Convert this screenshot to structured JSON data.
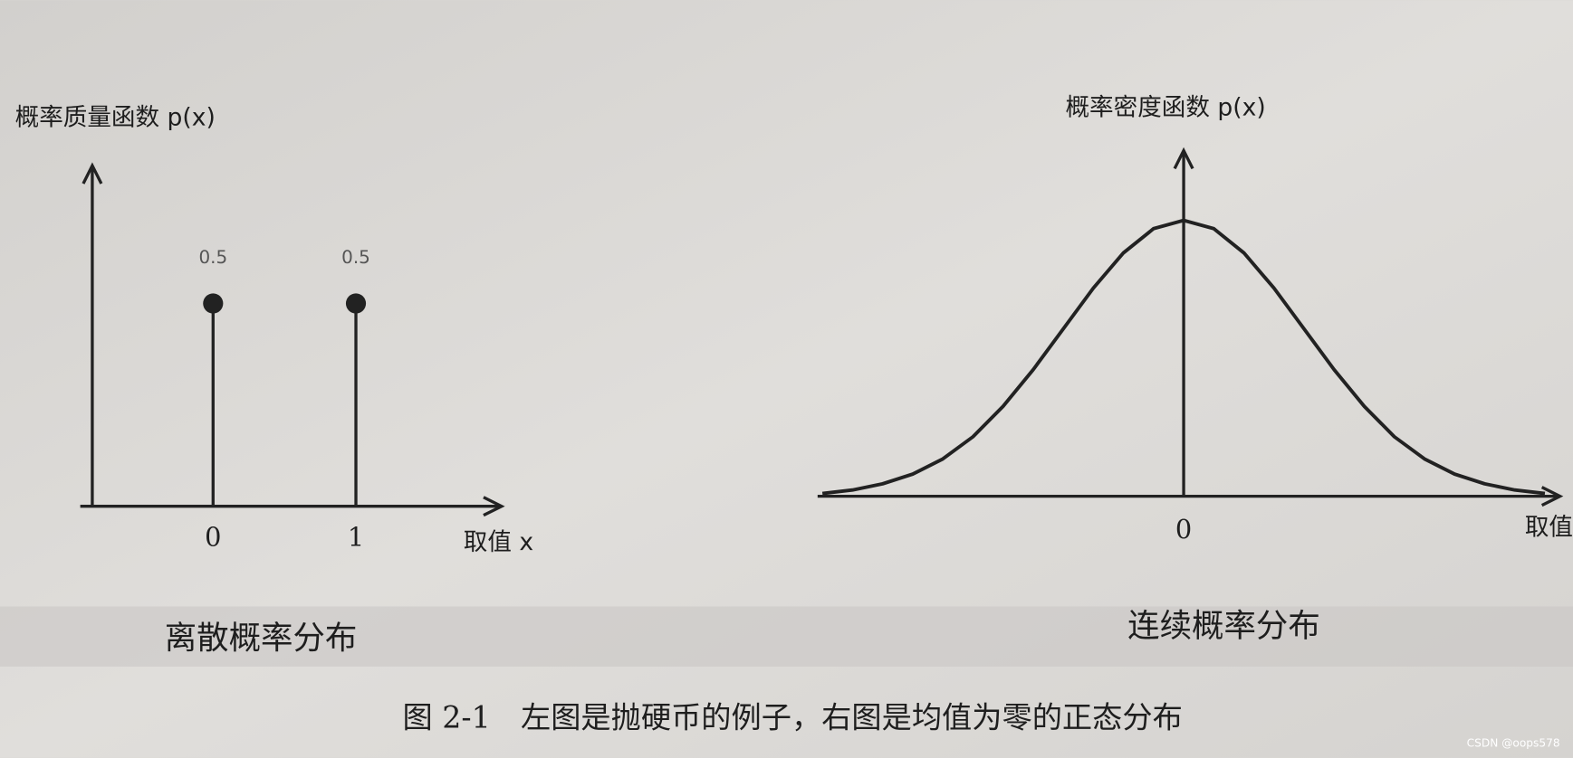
{
  "chart_data": [
    {
      "type": "stem",
      "title": "离散概率分布",
      "y_label": "概率质量函数 p(x)",
      "x_label": "取值 x",
      "x": [
        0,
        1
      ],
      "values": [
        0.5,
        0.5
      ],
      "color": "#222222",
      "xlim": [
        -0.93,
        2.02
      ],
      "ylim": [
        0,
        0.84
      ],
      "xticks": [
        0,
        1
      ]
    },
    {
      "type": "line",
      "title": "连续概率分布",
      "y_label": "概率密度函数 p(x)",
      "x_label": "取值",
      "x": [
        -3,
        -2.75,
        -2.5,
        -2.25,
        -2,
        -1.75,
        -1.5,
        -1.25,
        -1,
        -0.75,
        -0.5,
        -0.25,
        0,
        0.25,
        0.5,
        0.75,
        1,
        1.25,
        1.5,
        1.75,
        2,
        2.25,
        2.5,
        2.75,
        3
      ],
      "values": [
        0.004,
        0.009,
        0.018,
        0.032,
        0.054,
        0.086,
        0.13,
        0.183,
        0.242,
        0.301,
        0.352,
        0.387,
        0.399,
        0.387,
        0.352,
        0.301,
        0.242,
        0.183,
        0.13,
        0.086,
        0.054,
        0.032,
        0.018,
        0.009,
        0.004
      ],
      "color": "#222222",
      "xlim": [
        -3.04,
        3.125
      ],
      "ylim": [
        0,
        0.5
      ],
      "xticks": [
        0
      ]
    }
  ],
  "caption": "图 2-1　左图是抛硬币的例子，右图是均值为零的正态分布",
  "watermark": "CSDN @oops578"
}
